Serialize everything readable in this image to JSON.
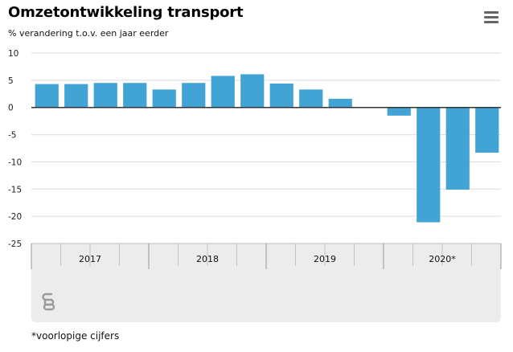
{
  "header": {
    "title": "Omzetontwikkeling transport",
    "subtitle": "% verandering t.o.v. een jaar eerder"
  },
  "menu": {
    "icon": "hamburger-menu-icon"
  },
  "chart_data": {
    "type": "bar",
    "title": "Omzetontwikkeling transport",
    "subtitle": "% verandering t.o.v. een jaar eerder",
    "ylim": [
      -25,
      10
    ],
    "yticks": [
      10,
      5,
      0,
      -5,
      -10,
      -15,
      -20,
      -25
    ],
    "ytick_labels": [
      "10",
      "5",
      "0",
      "-5",
      "-10",
      "-15",
      "-20",
      "-25"
    ],
    "grid": true,
    "bar_color": "#41a4d4",
    "values": [
      4.3,
      4.3,
      4.5,
      4.5,
      3.3,
      4.5,
      5.8,
      6.1,
      4.4,
      3.3,
      1.6,
      null,
      -1.5,
      -21.1,
      -15.1,
      -8.3
    ],
    "year_groups": [
      {
        "label": "2017",
        "quarters": 4
      },
      {
        "label": "2018",
        "quarters": 4
      },
      {
        "label": "2019",
        "quarters": 4
      },
      {
        "label": "2020*",
        "quarters": 4
      }
    ]
  },
  "footer": {
    "logo": "cbs-logo",
    "footnote": "*voorlopige cijfers"
  }
}
